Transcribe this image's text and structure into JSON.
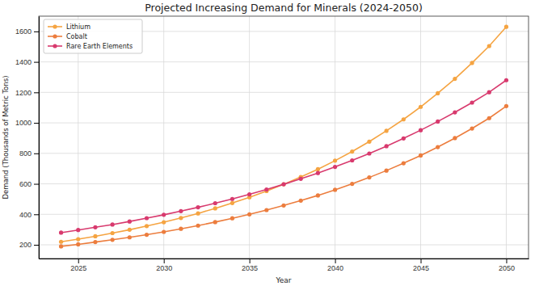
{
  "chart_data": {
    "type": "line",
    "title": "Projected Increasing Demand for Minerals (2024-2050)",
    "x_label": "Year",
    "y_label": "Demand (Thousands of Metric Tons)",
    "x": [
      2024,
      2025,
      2026,
      2027,
      2028,
      2029,
      2030,
      2031,
      2032,
      2033,
      2034,
      2035,
      2036,
      2037,
      2038,
      2039,
      2040,
      2041,
      2042,
      2043,
      2044,
      2045,
      2046,
      2047,
      2048,
      2049,
      2050
    ],
    "series": [
      {
        "name": "Lithium",
        "color": "#f5a442",
        "marker": "circle",
        "line_style": "solid",
        "values": [
          220,
          237,
          256,
          277,
          299,
          323,
          348,
          376,
          406,
          439,
          474,
          512,
          553,
          597,
          645,
          696,
          752,
          812,
          877,
          948,
          1023,
          1105,
          1194,
          1289,
          1393,
          1504,
          1630
        ]
      },
      {
        "name": "Cobalt",
        "color": "#ec7d3e",
        "marker": "circle",
        "line_style": "solid",
        "values": [
          190,
          203,
          218,
          233,
          249,
          266,
          285,
          305,
          326,
          349,
          374,
          400,
          428,
          458,
          490,
          524,
          561,
          600,
          642,
          687,
          735,
          786,
          841,
          900,
          963,
          1031,
          1110
        ]
      },
      {
        "name": "Rare Earth Elements",
        "color": "#d83a6e",
        "marker": "circle",
        "line_style": "solid",
        "values": [
          280,
          297,
          315,
          333,
          353,
          375,
          397,
          421,
          446,
          473,
          501,
          531,
          563,
          597,
          633,
          671,
          711,
          754,
          799,
          847,
          898,
          952,
          1009,
          1069,
          1133,
          1201,
          1280
        ]
      }
    ],
    "xlim": [
      2022.7,
      2051.3
    ],
    "xticks": [
      2025,
      2030,
      2035,
      2040,
      2045,
      2050
    ],
    "ylim": [
      110,
      1700
    ],
    "yticks": [
      200,
      400,
      600,
      800,
      1000,
      1200,
      1400,
      1600
    ],
    "grid": true,
    "legend": "upper left"
  }
}
